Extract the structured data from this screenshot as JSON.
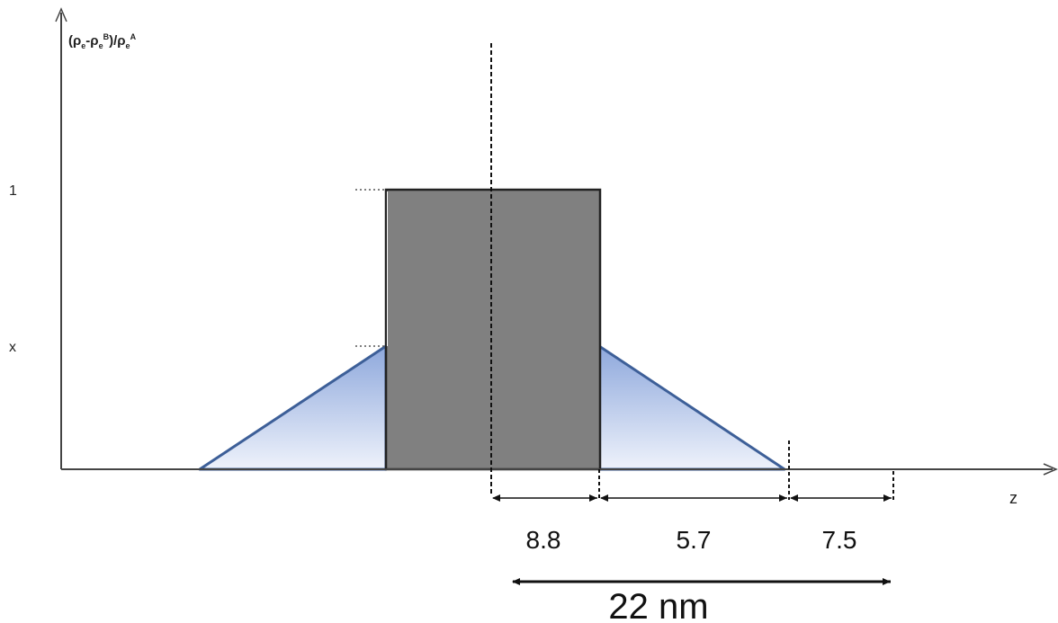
{
  "axes": {
    "y_label": {
      "base": "(ρ",
      "sub1": "e",
      "minus": "-ρ",
      "sub2": "e",
      "sup1": "B",
      "mid": ")/ρ",
      "sub3": "e",
      "sup2": "A"
    },
    "y_tick_1": "1",
    "y_tick_x": "x",
    "x_label": "z"
  },
  "dimensions": {
    "core": "8.8",
    "gradient": "5.7",
    "outer": "7.5",
    "total": "22 nm"
  },
  "colors": {
    "core_fill": "#808080",
    "gradient_fill_top": "#8ea8dc",
    "gradient_fill_bottom": "#eef2fb",
    "gradient_stroke": "#3d5f98",
    "axis": "#444444"
  }
}
